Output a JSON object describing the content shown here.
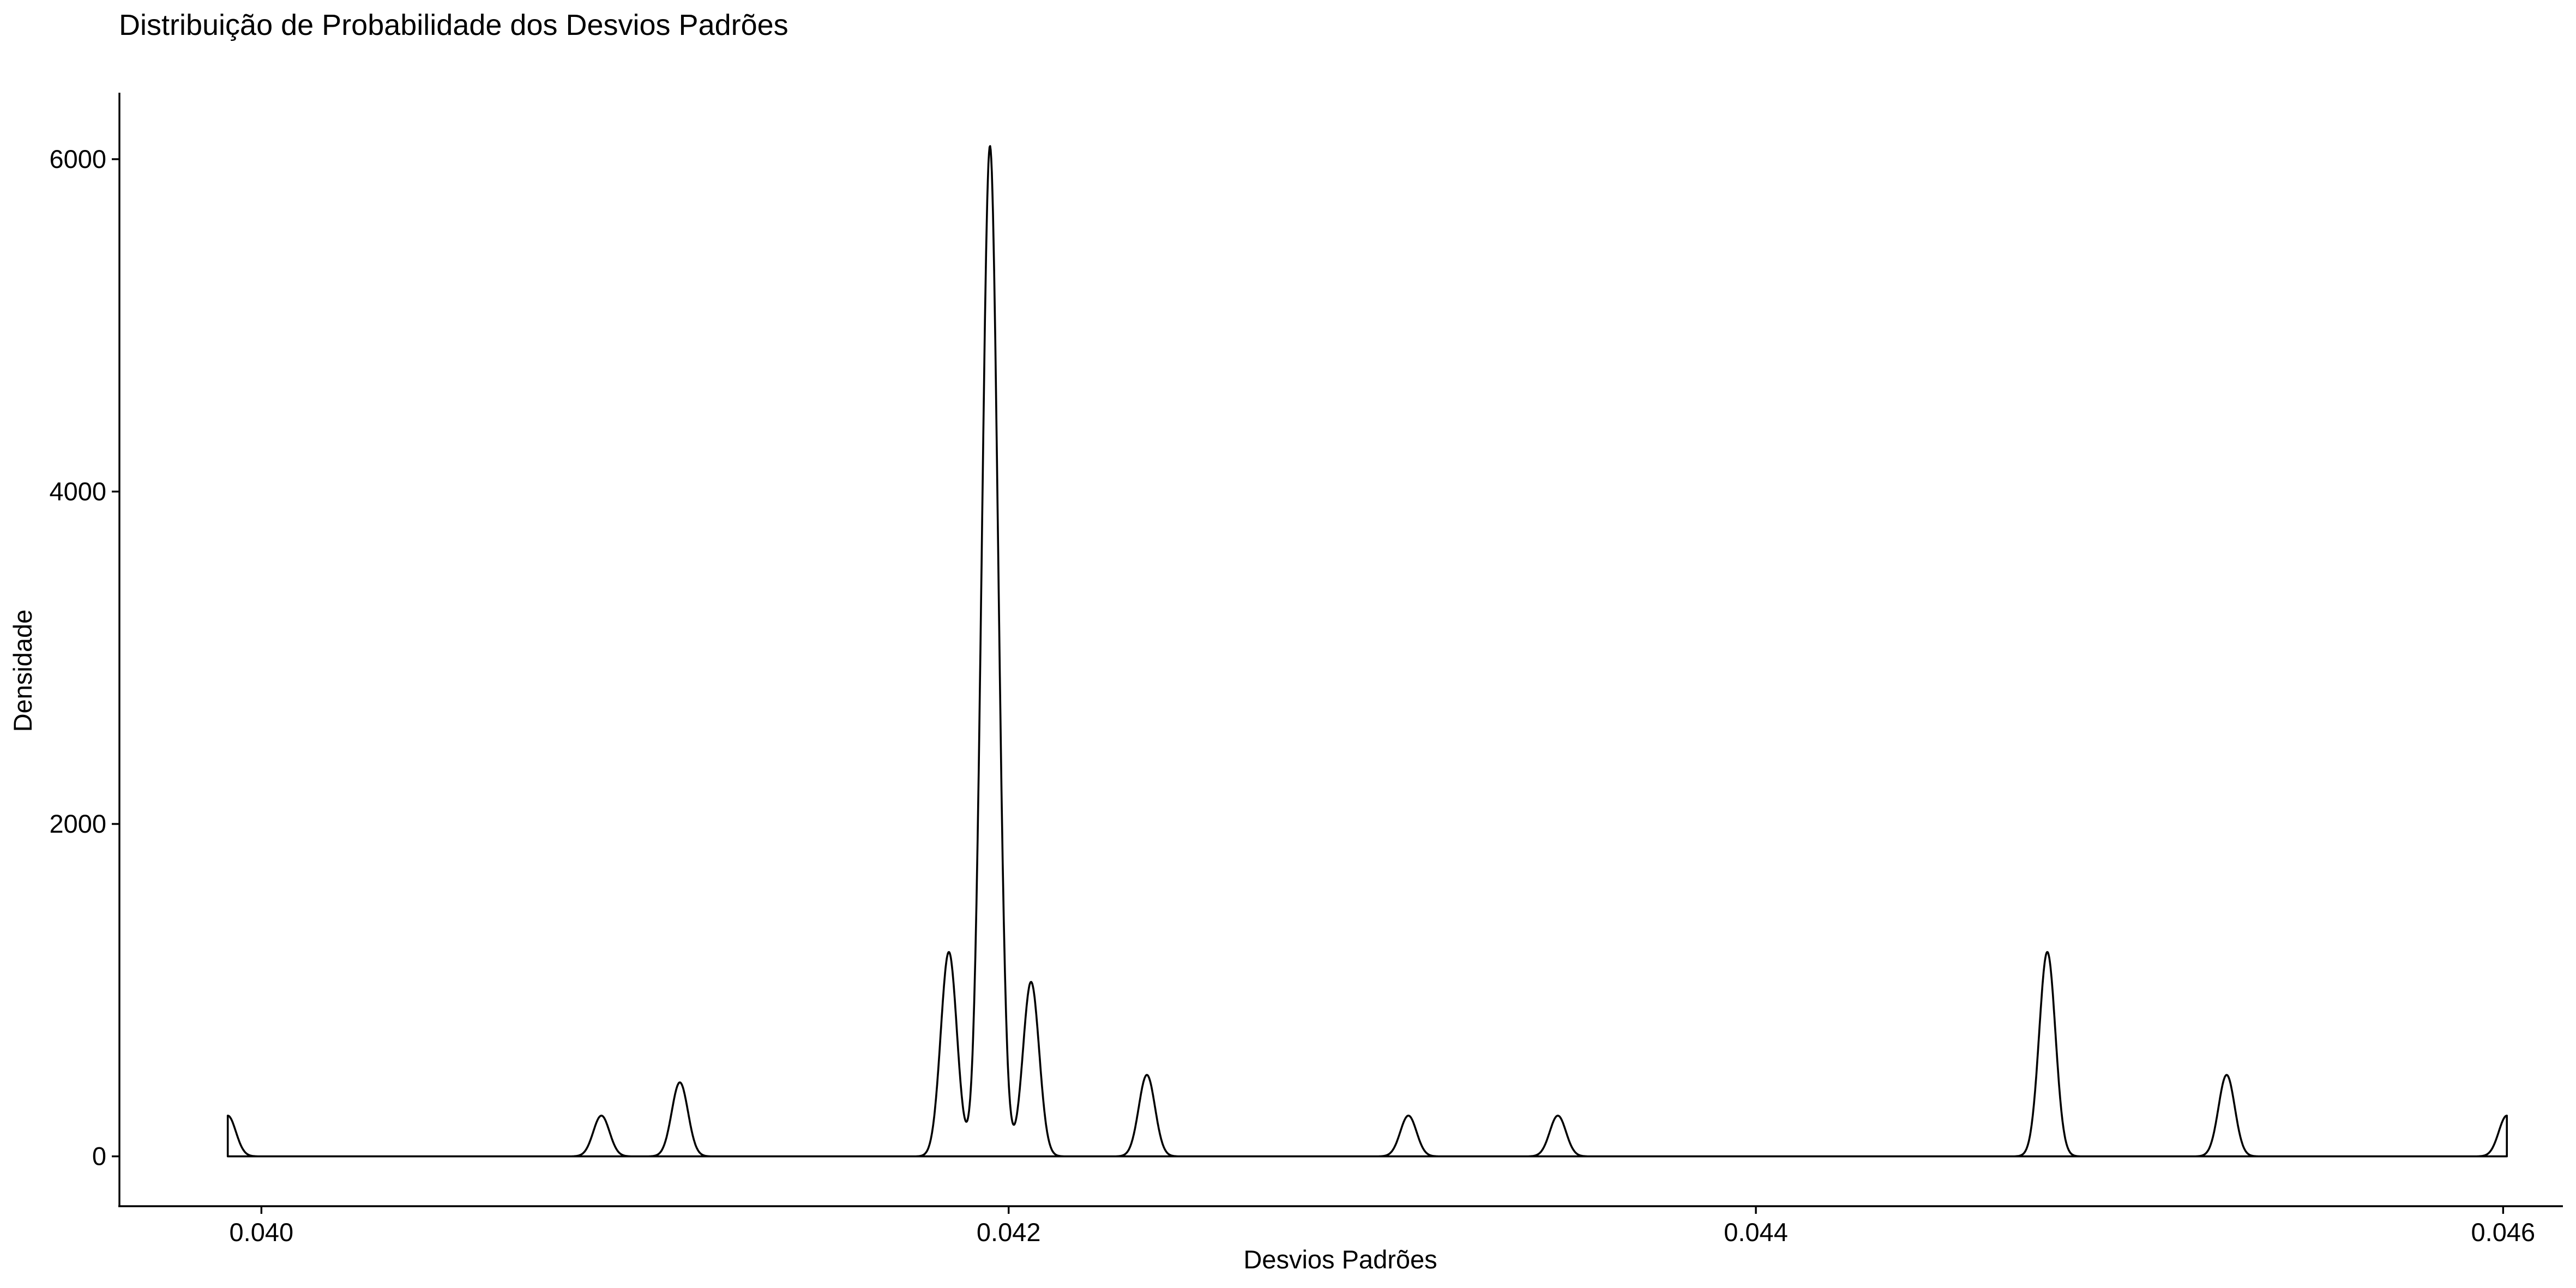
{
  "chart_data": {
    "type": "area",
    "title": "Distribuição de Probabilidade dos Desvios Padrões",
    "xlabel": "Desvios Padrões",
    "ylabel": "Densidade",
    "xlim": [
      0.03962,
      0.04616
    ],
    "ylim": [
      -300,
      6400
    ],
    "x_ticks": [
      {
        "value": 0.04,
        "label": "0.040"
      },
      {
        "value": 0.042,
        "label": "0.042"
      },
      {
        "value": 0.044,
        "label": "0.044"
      },
      {
        "value": 0.046,
        "label": "0.046"
      }
    ],
    "y_ticks": [
      {
        "value": 0,
        "label": "0"
      },
      {
        "value": 2000,
        "label": "2000"
      },
      {
        "value": 4000,
        "label": "4000"
      },
      {
        "value": 6000,
        "label": "6000"
      }
    ],
    "grid": false,
    "legend": "none",
    "x_range": [
      0.03991,
      0.04601
    ],
    "bandwidth": 2.17e-05,
    "peaks": [
      {
        "x": 0.03991,
        "density": 245
      },
      {
        "x": 0.04091,
        "density": 245
      },
      {
        "x": 0.04112,
        "density": 445
      },
      {
        "x": 0.04184,
        "density": 1230
      },
      {
        "x": 0.04195,
        "density": 6080
      },
      {
        "x": 0.04206,
        "density": 1050
      },
      {
        "x": 0.04237,
        "density": 490
      },
      {
        "x": 0.04307,
        "density": 245
      },
      {
        "x": 0.04347,
        "density": 245
      },
      {
        "x": 0.04478,
        "density": 1230
      },
      {
        "x": 0.04526,
        "density": 490
      },
      {
        "x": 0.04601,
        "density": 245
      }
    ]
  }
}
